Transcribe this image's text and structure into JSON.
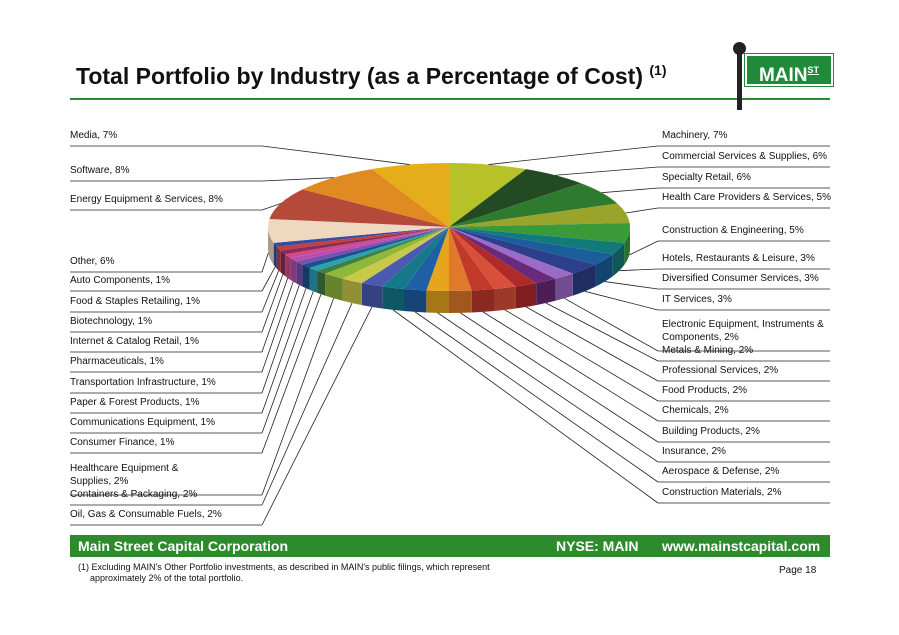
{
  "header": {
    "title": "Total Portfolio by Industry (as a Percentage of Cost)",
    "title_sup": "(1)",
    "logo_text": "MAIN",
    "logo_sup": "ST"
  },
  "colors": {
    "brand_green": "#2d8a2d",
    "rule_green": "#2e8b2e"
  },
  "chart_data": {
    "type": "pie",
    "title": "",
    "slices": [
      {
        "label": "Machinery, 7%",
        "value": 7,
        "color": "#b6c227"
      },
      {
        "label": "Commercial Services & Supplies, 6%",
        "value": 6,
        "color": "#244a24"
      },
      {
        "label": "Specialty Retail, 6%",
        "value": 6,
        "color": "#2e7a2e"
      },
      {
        "label": "Health Care Providers & Services, 5%",
        "value": 5,
        "color": "#99a52a"
      },
      {
        "label": "Construction & Engineering, 5%",
        "value": 5,
        "color": "#3a9a3a"
      },
      {
        "label": "Hotels, Restaurants & Leisure, 3%",
        "value": 3,
        "color": "#137a7a"
      },
      {
        "label": "Diversified Consumer Services, 3%",
        "value": 3,
        "color": "#1a5e9c"
      },
      {
        "label": "IT Services, 3%",
        "value": 3,
        "color": "#2d3e8a"
      },
      {
        "label": "Electronic Equipment, Instruments & Components, 2%",
        "value": 2,
        "color": "#9c6bc8"
      },
      {
        "label": "Metals & Mining, 2%",
        "value": 2,
        "color": "#6a2a7a"
      },
      {
        "label": "Professional Services, 2%",
        "value": 2,
        "color": "#b02a2a"
      },
      {
        "label": "Food Products, 2%",
        "value": 2,
        "color": "#d9503a"
      },
      {
        "label": "Chemicals, 2%",
        "value": 2,
        "color": "#c0392b"
      },
      {
        "label": "Building Products, 2%",
        "value": 2,
        "color": "#e07a2a"
      },
      {
        "label": "Insurance, 2%",
        "value": 2,
        "color": "#e6a51c"
      },
      {
        "label": "Aerospace & Defense, 2%",
        "value": 2,
        "color": "#1f5fa6"
      },
      {
        "label": "Construction Materials, 2%",
        "value": 2,
        "color": "#147a8a"
      },
      {
        "label": "Oil, Gas & Consumable Fuels, 2%",
        "value": 2,
        "color": "#4b5ab0"
      },
      {
        "label": "Containers & Packaging, 2%",
        "value": 2,
        "color": "#c8c84a"
      },
      {
        "label": "Healthcare Equipment & Supplies, 2%",
        "value": 2,
        "color": "#8fb83a"
      },
      {
        "label": "Consumer Finance, 1%",
        "value": 1,
        "color": "#3f7f3f"
      },
      {
        "label": "Communications Equipment, 1%",
        "value": 1,
        "color": "#26a2b4"
      },
      {
        "label": "Paper & Forest Products, 1%",
        "value": 1,
        "color": "#1c4f8c"
      },
      {
        "label": "Transportation Infrastructure, 1%",
        "value": 1,
        "color": "#7a4fb0"
      },
      {
        "label": "Pharmaceuticals, 1%",
        "value": 1,
        "color": "#b84fb0"
      },
      {
        "label": "Internet & Catalog Retail, 1%",
        "value": 1,
        "color": "#d04a8a"
      },
      {
        "label": "Biotechnology, 1%",
        "value": 1,
        "color": "#8a2a5a"
      },
      {
        "label": "Food & Staples Retailing, 1%",
        "value": 1,
        "color": "#c04040"
      },
      {
        "label": "Auto Components, 1%",
        "value": 1,
        "color": "#3a4aa0"
      },
      {
        "label": "Other, 6%",
        "value": 6,
        "color": "#efd8c0"
      },
      {
        "label": "Energy Equipment & Services, 8%",
        "value": 8,
        "color": "#b5493a"
      },
      {
        "label": "Software, 8%",
        "value": 8,
        "color": "#e08a22"
      },
      {
        "label": "Media, 7%",
        "value": 7,
        "color": "#e6ad1a"
      }
    ],
    "legend": "callout-labels"
  },
  "footer": {
    "company": "Main Street Capital Corporation",
    "ticker": "NYSE: MAIN",
    "website": "www.mainstcapital.com",
    "footnote_line1": "(1) Excluding MAIN's Other Portfolio investments, as described in MAIN's public filings, which represent",
    "footnote_line2": "approximately 2% of the total portfolio.",
    "page": "Page 18"
  }
}
